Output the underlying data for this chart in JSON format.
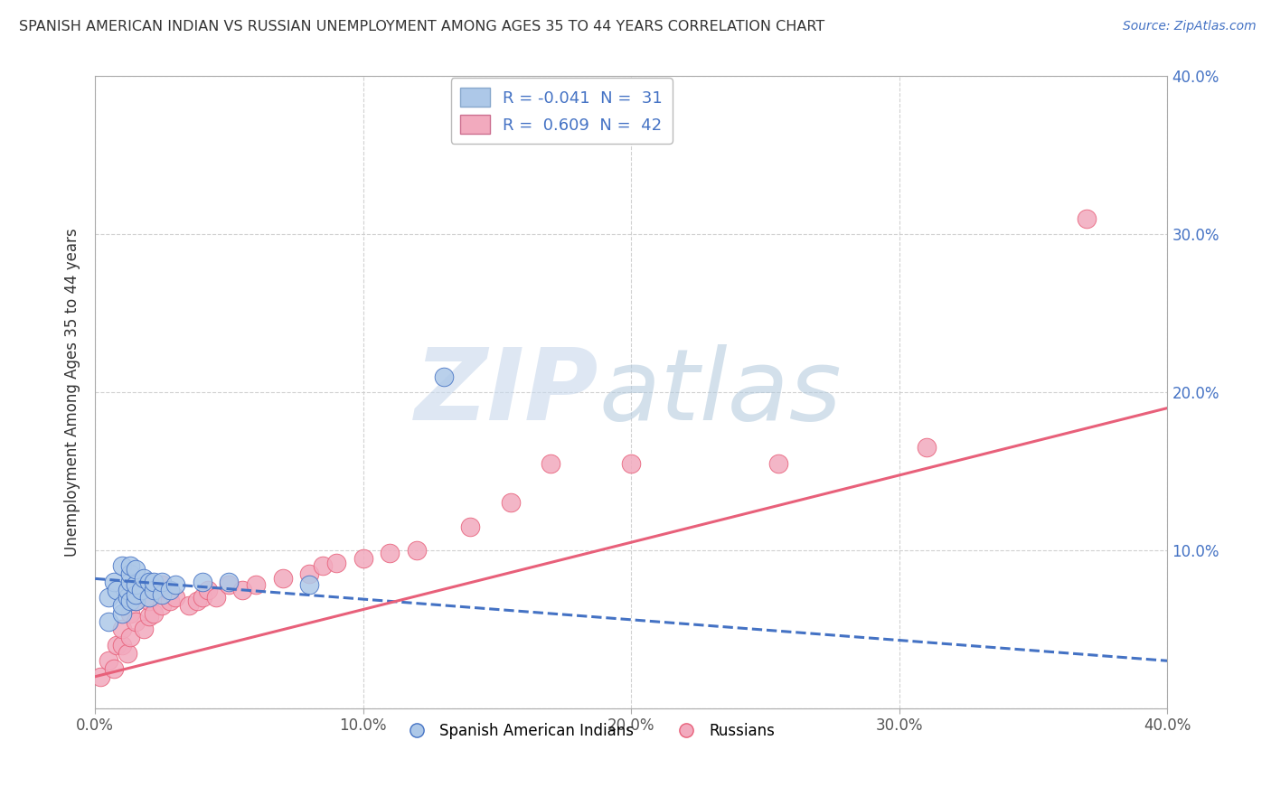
{
  "title": "SPANISH AMERICAN INDIAN VS RUSSIAN UNEMPLOYMENT AMONG AGES 35 TO 44 YEARS CORRELATION CHART",
  "source": "Source: ZipAtlas.com",
  "ylabel": "Unemployment Among Ages 35 to 44 years",
  "xlim": [
    0.0,
    0.4
  ],
  "ylim": [
    0.0,
    0.4
  ],
  "xticks": [
    0.0,
    0.1,
    0.2,
    0.3,
    0.4
  ],
  "yticks": [
    0.0,
    0.1,
    0.2,
    0.3,
    0.4
  ],
  "xtick_labels": [
    "0.0%",
    "10.0%",
    "20.0%",
    "30.0%",
    "40.0%"
  ],
  "ytick_labels_right": [
    "",
    "10.0%",
    "20.0%",
    "30.0%",
    "40.0%"
  ],
  "legend_R_blue": "-0.041",
  "legend_N_blue": "31",
  "legend_R_pink": "0.609",
  "legend_N_pink": "42",
  "blue_color": "#adc8e8",
  "pink_color": "#f2aabe",
  "blue_line_color": "#4472c4",
  "pink_line_color": "#e8607a",
  "blue_scatter_x": [
    0.005,
    0.005,
    0.007,
    0.008,
    0.01,
    0.01,
    0.01,
    0.012,
    0.012,
    0.013,
    0.013,
    0.013,
    0.013,
    0.015,
    0.015,
    0.015,
    0.015,
    0.017,
    0.018,
    0.02,
    0.02,
    0.022,
    0.022,
    0.025,
    0.025,
    0.028,
    0.03,
    0.04,
    0.05,
    0.08,
    0.13
  ],
  "blue_scatter_y": [
    0.055,
    0.07,
    0.08,
    0.075,
    0.06,
    0.065,
    0.09,
    0.07,
    0.075,
    0.068,
    0.08,
    0.085,
    0.09,
    0.068,
    0.072,
    0.078,
    0.088,
    0.075,
    0.082,
    0.07,
    0.08,
    0.075,
    0.08,
    0.072,
    0.08,
    0.075,
    0.078,
    0.08,
    0.08,
    0.078,
    0.21
  ],
  "pink_scatter_x": [
    0.002,
    0.005,
    0.007,
    0.008,
    0.01,
    0.01,
    0.012,
    0.013,
    0.013,
    0.015,
    0.015,
    0.018,
    0.02,
    0.02,
    0.022,
    0.023,
    0.025,
    0.025,
    0.028,
    0.03,
    0.035,
    0.038,
    0.04,
    0.042,
    0.045,
    0.05,
    0.055,
    0.06,
    0.07,
    0.08,
    0.085,
    0.09,
    0.1,
    0.11,
    0.12,
    0.14,
    0.155,
    0.17,
    0.2,
    0.255,
    0.31,
    0.37
  ],
  "pink_scatter_y": [
    0.02,
    0.03,
    0.025,
    0.04,
    0.04,
    0.05,
    0.035,
    0.045,
    0.06,
    0.055,
    0.068,
    0.05,
    0.058,
    0.068,
    0.06,
    0.075,
    0.065,
    0.078,
    0.068,
    0.07,
    0.065,
    0.068,
    0.07,
    0.075,
    0.07,
    0.078,
    0.075,
    0.078,
    0.082,
    0.085,
    0.09,
    0.092,
    0.095,
    0.098,
    0.1,
    0.115,
    0.13,
    0.155,
    0.155,
    0.155,
    0.165,
    0.31
  ],
  "blue_trend_x": [
    0.0,
    0.4
  ],
  "blue_trend_y": [
    0.082,
    0.03
  ],
  "pink_trend_x": [
    0.0,
    0.4
  ],
  "pink_trend_y": [
    0.02,
    0.19
  ]
}
